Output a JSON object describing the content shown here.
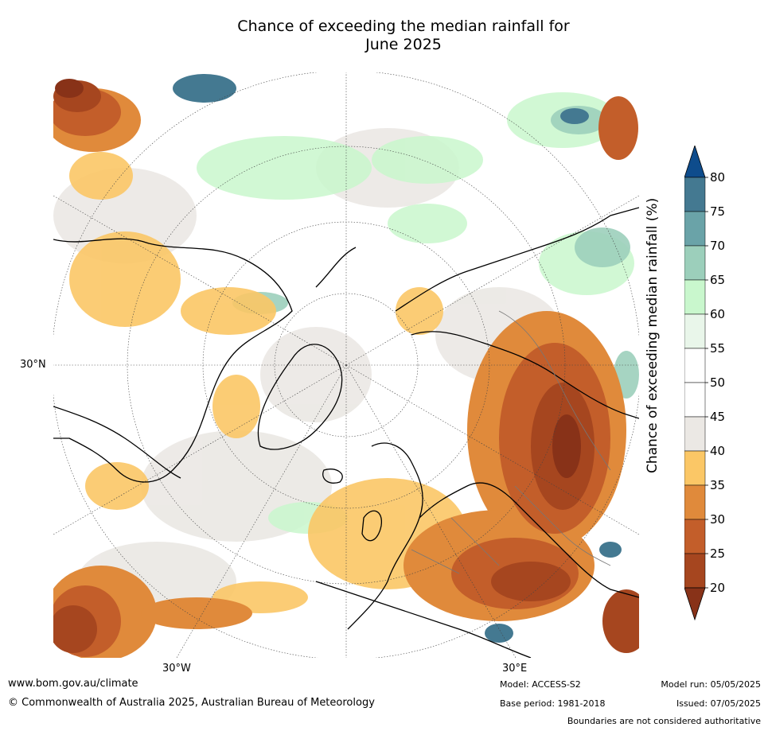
{
  "title_line1": "Chance of exceeding the median rainfall for",
  "title_line2": "June 2025",
  "axis": {
    "lat_label": "30°N",
    "lon_label_left": "30°W",
    "lon_label_right": "30°E"
  },
  "colorbar": {
    "label": "Chance of exceeding median rainfall (%)",
    "ticks": [
      "80",
      "75",
      "70",
      "65",
      "60",
      "55",
      "50",
      "45",
      "40",
      "35",
      "30",
      "25",
      "20"
    ],
    "colors": [
      "#0e4c8c",
      "#447991",
      "#6aa3a8",
      "#9ccfbb",
      "#c9f7cd",
      "#e9f6ea",
      "#ffffff",
      "#ffffff",
      "#ebe8e4",
      "#fbc766",
      "#e08a3b",
      "#c35e2a",
      "#a6461f",
      "#883218"
    ]
  },
  "footer": {
    "url": "www.bom.gov.au/climate",
    "copyright": "© Commonwealth of Australia 2025, Australian Bureau of Meteorology",
    "model": "Model: ACCESS-S2",
    "base_period": "Base period: 1981-2018",
    "model_run": "Model run: 05/05/2025",
    "issued": "Issued: 07/05/2025",
    "disclaimer": "Boundaries are not considered authoritative"
  }
}
